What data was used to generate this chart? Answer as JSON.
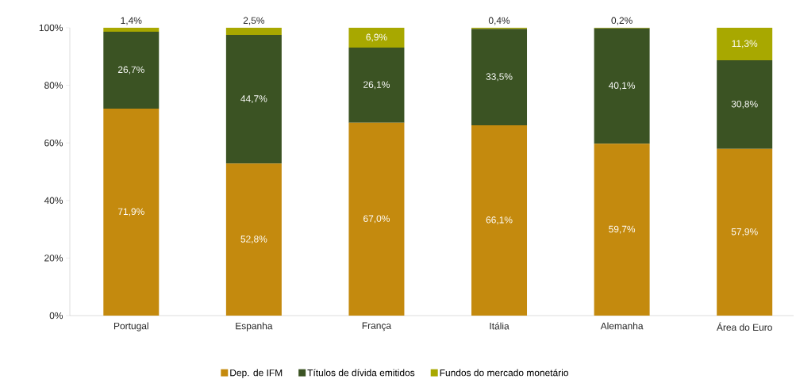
{
  "chart_data": {
    "type": "bar",
    "stacked": true,
    "categories": [
      "Portugal",
      "Espanha",
      "França",
      "Itália",
      "Alemanha",
      "Área do Euro"
    ],
    "series": [
      {
        "name": "Dep. de IFM",
        "color": "#c48a0e",
        "values": [
          71.9,
          52.8,
          67.0,
          66.1,
          59.7,
          57.9
        ],
        "value_labels": [
          "71,9%",
          "52,8%",
          "67,0%",
          "66,1%",
          "59,7%",
          "57,9%"
        ]
      },
      {
        "name": "Títulos de dívida emitidos",
        "color": "#3b5323",
        "values": [
          26.7,
          44.7,
          26.1,
          33.5,
          40.1,
          30.8
        ],
        "value_labels": [
          "26,7%",
          "44,7%",
          "26,1%",
          "33,5%",
          "40,1%",
          "30,8%"
        ]
      },
      {
        "name": "Fundos do mercado monetário",
        "color": "#a8a800",
        "values": [
          1.4,
          2.5,
          6.9,
          0.4,
          0.2,
          11.3
        ],
        "value_labels": [
          "1,4%",
          "2,5%",
          "6,9%",
          "0,4%",
          "0,2%",
          "11,3%"
        ]
      }
    ],
    "ylim": [
      0,
      100
    ],
    "yticks": [
      {
        "value": 0,
        "label": "0%"
      },
      {
        "value": 20,
        "label": "20%"
      },
      {
        "value": 40,
        "label": "40%"
      },
      {
        "value": 60,
        "label": "60%"
      },
      {
        "value": 80,
        "label": "80%"
      },
      {
        "value": 100,
        "label": "100%"
      }
    ],
    "grid": false,
    "legend": "bottom"
  }
}
